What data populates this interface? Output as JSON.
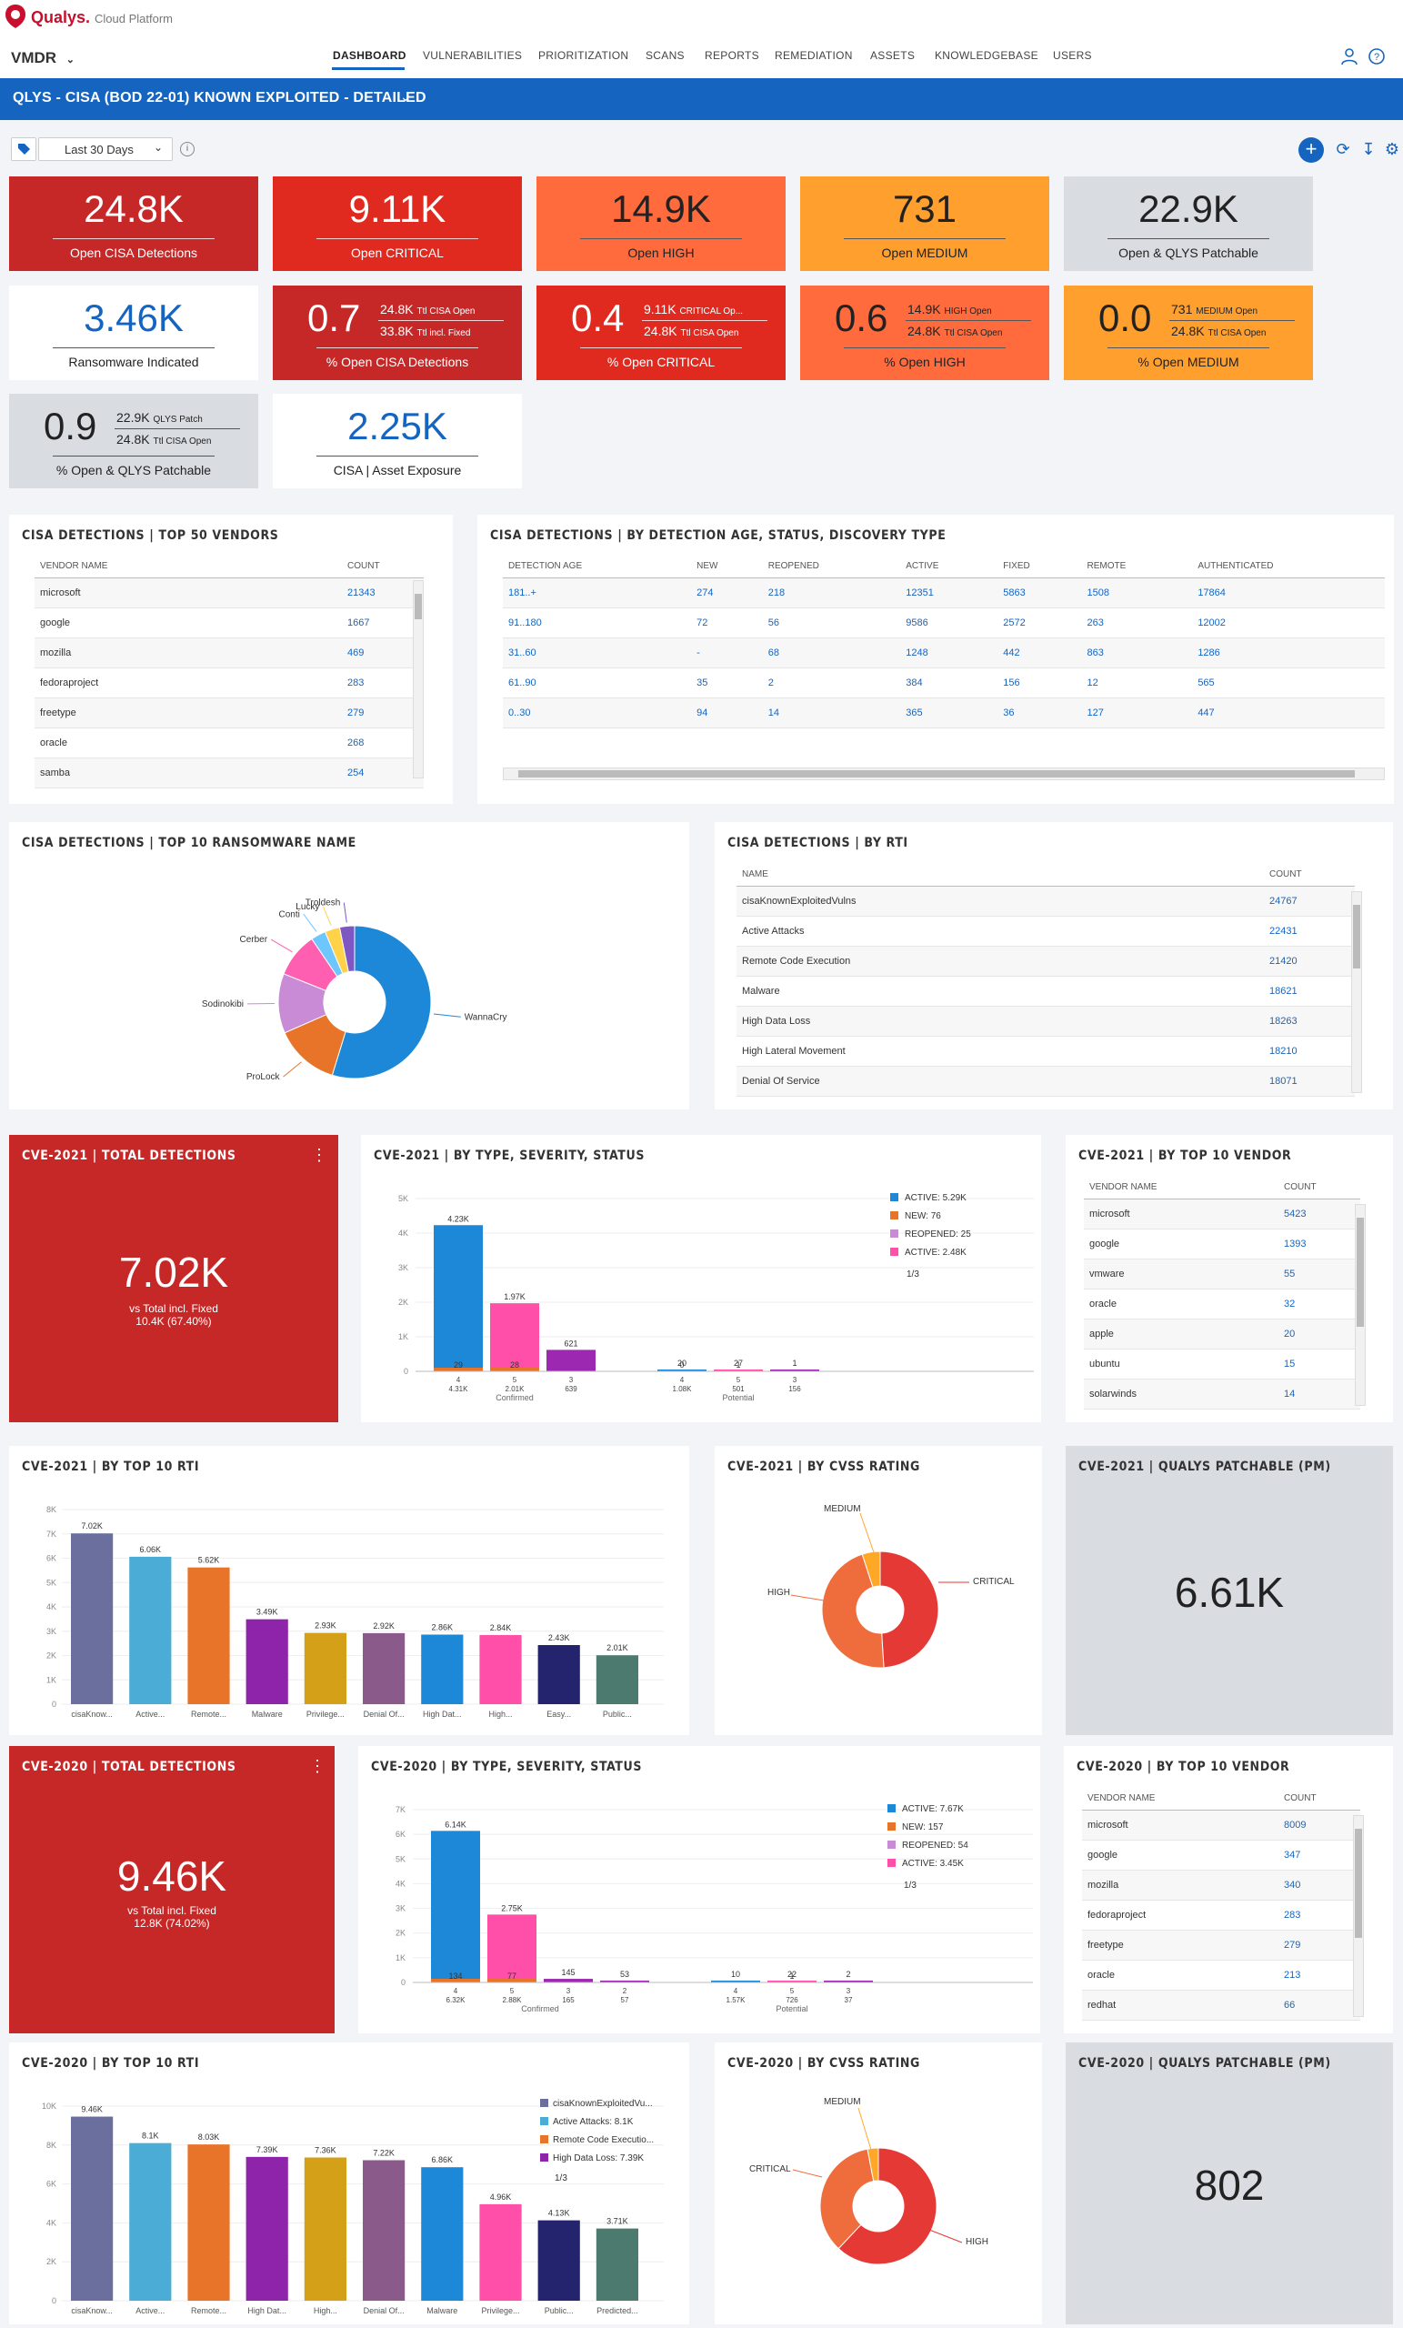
{
  "app": {
    "brand": "Qualys.",
    "platform": "Cloud Platform",
    "module": "VMDR"
  },
  "nav": [
    "DASHBOARD",
    "VULNERABILITIES",
    "PRIORITIZATION",
    "SCANS",
    "REPORTS",
    "REMEDIATION",
    "ASSETS",
    "KNOWLEDGEBASE",
    "USERS"
  ],
  "dashboard_title": "QLYS - CISA (BOD 22-01) KNOWN EXPLOITED - DETAILED",
  "filter": {
    "date_range": "Last 30 Days"
  },
  "colors": {
    "dark_red": "#c62828",
    "red": "#e53935",
    "orange_red": "#ff7043",
    "orange": "#ffa726",
    "grey": "#d9dde2",
    "blue": "#1565c0"
  },
  "cards": {
    "c1": {
      "value": "24.8K",
      "label": "Open CISA Detections"
    },
    "c2": {
      "value": "9.11K",
      "label": "Open CRITICAL"
    },
    "c3": {
      "value": "14.9K",
      "label": "Open HIGH"
    },
    "c4": {
      "value": "731",
      "label": "Open MEDIUM"
    },
    "c5": {
      "value": "22.9K",
      "label": "Open & QLYS Patchable"
    },
    "c6": {
      "value": "3.46K",
      "label": "Ransomware Indicated"
    },
    "c7": {
      "value": "0.7",
      "n1": "24.8K",
      "n1l": "Ttl CISA Open",
      "n2": "33.8K",
      "n2l": "Ttl incl. Fixed",
      "label": "% Open CISA Detections"
    },
    "c8": {
      "value": "0.4",
      "n1": "9.11K",
      "n1l": "CRITICAL Op...",
      "n2": "24.8K",
      "n2l": "Ttl CISA Open",
      "label": "% Open CRITICAL"
    },
    "c9": {
      "value": "0.6",
      "n1": "14.9K",
      "n1l": "HIGH Open",
      "n2": "24.8K",
      "n2l": "Ttl CISA Open",
      "label": "% Open HIGH"
    },
    "c10": {
      "value": "0.0",
      "n1": "731",
      "n1l": "MEDIUM Open",
      "n2": "24.8K",
      "n2l": "Ttl CISA Open",
      "label": "% Open MEDIUM"
    },
    "c11": {
      "value": "0.9",
      "n1": "22.9K",
      "n1l": "QLYS Patch",
      "n2": "24.8K",
      "n2l": "Ttl CISA Open",
      "label": "% Open & QLYS Patchable"
    },
    "c12": {
      "value": "2.25K",
      "label": "CISA | Asset Exposure"
    }
  },
  "vendors50": {
    "title": "CISA DETECTIONS | TOP 50 VENDORS",
    "col1": "VENDOR NAME",
    "col2": "COUNT",
    "rows": [
      [
        "microsoft",
        "21343"
      ],
      [
        "google",
        "1667"
      ],
      [
        "mozilla",
        "469"
      ],
      [
        "fedoraproject",
        "283"
      ],
      [
        "freetype",
        "279"
      ],
      [
        "oracle",
        "268"
      ],
      [
        "samba",
        "254"
      ]
    ]
  },
  "age": {
    "title": "CISA DETECTIONS | BY DETECTION AGE, STATUS, DISCOVERY TYPE",
    "cols": [
      "DETECTION AGE",
      "NEW",
      "REOPENED",
      "ACTIVE",
      "FIXED",
      "REMOTE",
      "AUTHENTICATED"
    ],
    "rows": [
      [
        "181..+",
        "274",
        "218",
        "12351",
        "5863",
        "1508",
        "17864"
      ],
      [
        "91..180",
        "72",
        "56",
        "9586",
        "2572",
        "263",
        "12002"
      ],
      [
        "31..60",
        "-",
        "68",
        "1248",
        "442",
        "863",
        "1286"
      ],
      [
        "61..90",
        "35",
        "2",
        "384",
        "156",
        "12",
        "565"
      ],
      [
        "0..30",
        "94",
        "14",
        "365",
        "36",
        "127",
        "447"
      ]
    ]
  },
  "ransom": {
    "title": "CISA DETECTIONS | TOP 10 RANSOMWARE NAME",
    "labels": [
      "WannaCry",
      "ProLock",
      "Sodinokibi",
      "Cerber",
      "Conti",
      "Lucky",
      "Troldesh"
    ]
  },
  "rti": {
    "title": "CISA DETECTIONS | BY RTI",
    "col1": "NAME",
    "col2": "COUNT",
    "rows": [
      [
        "cisaKnownExploitedVulns",
        "24767"
      ],
      [
        "Active Attacks",
        "22431"
      ],
      [
        "Remote Code Execution",
        "21420"
      ],
      [
        "Malware",
        "18621"
      ],
      [
        "High Data Loss",
        "18263"
      ],
      [
        "High Lateral Movement",
        "18210"
      ],
      [
        "Denial Of Service",
        "18071"
      ]
    ]
  },
  "cve21_total": {
    "title": "CVE-2021 | TOTAL DETECTIONS",
    "value": "7.02K",
    "sub1": "vs Total incl. Fixed",
    "sub2": "10.4K (67.40%)"
  },
  "cve21_type": {
    "title": "CVE-2021 | BY TYPE, SEVERITY, STATUS",
    "legend": [
      "ACTIVE: 5.29K",
      "NEW: 76",
      "REOPENED: 25",
      "ACTIVE: 2.48K"
    ],
    "pager": "1/3",
    "yticks": [
      "5K",
      "4K",
      "3K",
      "2K",
      "1K",
      "0"
    ],
    "bars": [
      [
        "4.23K",
        "29"
      ],
      [
        "1.97K",
        "28"
      ],
      [
        "621",
        ""
      ],
      [
        "20",
        "0"
      ],
      [
        "27",
        "1"
      ],
      [
        "1",
        ""
      ]
    ],
    "xl1": [
      "4",
      "5",
      "3",
      "4",
      "5",
      "3"
    ],
    "xl2": [
      "4.31K",
      "2.01K",
      "639",
      "1.08K",
      "501",
      "156"
    ],
    "groups": [
      "Confirmed",
      "Potential"
    ]
  },
  "cve21_vendor": {
    "title": "CVE-2021 | BY TOP 10 VENDOR",
    "col1": "VENDOR NAME",
    "col2": "COUNT",
    "rows": [
      [
        "microsoft",
        "5423"
      ],
      [
        "google",
        "1393"
      ],
      [
        "vmware",
        "55"
      ],
      [
        "oracle",
        "32"
      ],
      [
        "apple",
        "20"
      ],
      [
        "ubuntu",
        "15"
      ],
      [
        "solarwinds",
        "14"
      ]
    ]
  },
  "cve21_rti": {
    "title": "CVE-2021 | BY TOP 10 RTI",
    "yticks": [
      "8K",
      "7K",
      "6K",
      "5K",
      "4K",
      "3K",
      "2K",
      "1K",
      "0"
    ],
    "labels": [
      "cisaKnow...",
      "Active...",
      "Remote...",
      "Malware",
      "Privilege...",
      "Denial Of...",
      "High Dat...",
      "High...",
      "Easy...",
      "Public..."
    ],
    "vals": [
      "7.02K",
      "6.06K",
      "5.62K",
      "3.49K",
      "2.93K",
      "2.92K",
      "2.86K",
      "2.84K",
      "2.43K",
      "2.01K"
    ]
  },
  "cve21_cvss": {
    "title": "CVE-2021 | BY CVSS RATING",
    "labels": [
      "MEDIUM",
      "HIGH",
      "CRITICAL"
    ]
  },
  "cve21_pm": {
    "title": "CVE-2021 | QUALYS PATCHABLE (PM)",
    "value": "6.61K"
  },
  "cve20_total": {
    "title": "CVE-2020 | TOTAL DETECTIONS",
    "value": "9.46K",
    "sub1": "vs Total incl. Fixed",
    "sub2": "12.8K (74.02%)"
  },
  "cve20_type": {
    "title": "CVE-2020 | BY TYPE, SEVERITY, STATUS",
    "legend": [
      "ACTIVE: 7.67K",
      "NEW: 157",
      "REOPENED: 54",
      "ACTIVE: 3.45K"
    ],
    "pager": "1/3",
    "yticks": [
      "7K",
      "6K",
      "5K",
      "4K",
      "3K",
      "2K",
      "1K",
      "0"
    ],
    "bars": [
      [
        "6.14K",
        "134"
      ],
      [
        "2.75K",
        "77"
      ],
      [
        "145",
        ""
      ],
      [
        "53",
        ""
      ],
      [
        "10",
        ""
      ],
      [
        "22",
        "1"
      ],
      [
        "2",
        ""
      ]
    ],
    "xl1": [
      "4",
      "5",
      "3",
      "2",
      "4",
      "5",
      "3"
    ],
    "xl2": [
      "6.32K",
      "2.88K",
      "165",
      "57",
      "1.57K",
      "726",
      "37"
    ],
    "groups": [
      "Confirmed",
      "Potential"
    ]
  },
  "cve20_vendor": {
    "title": "CVE-2020 | BY TOP 10 VENDOR",
    "col1": "VENDOR NAME",
    "col2": "COUNT",
    "rows": [
      [
        "microsoft",
        "8009"
      ],
      [
        "google",
        "347"
      ],
      [
        "mozilla",
        "340"
      ],
      [
        "fedoraproject",
        "283"
      ],
      [
        "freetype",
        "279"
      ],
      [
        "oracle",
        "213"
      ],
      [
        "redhat",
        "66"
      ]
    ]
  },
  "cve20_rti": {
    "title": "CVE-2020 | BY TOP 10 RTI",
    "yticks": [
      "10K",
      "8K",
      "6K",
      "4K",
      "2K",
      "0"
    ],
    "labels": [
      "cisaKnow...",
      "Active...",
      "Remote...",
      "High Dat...",
      "High...",
      "Denial Of...",
      "Malware",
      "Privilege...",
      "Public...",
      "Predicted..."
    ],
    "vals": [
      "9.46K",
      "8.1K",
      "8.03K",
      "7.39K",
      "7.36K",
      "7.22K",
      "6.86K",
      "4.96K",
      "4.13K",
      "3.71K"
    ],
    "legend": [
      "cisaKnownExploitedVu...",
      "Active Attacks: 8.1K",
      "Remote Code Executio...",
      "High Data Loss: 7.39K"
    ],
    "pager": "1/3"
  },
  "cve20_cvss": {
    "title": "CVE-2020 | BY CVSS RATING",
    "labels": [
      "MEDIUM",
      "CRITICAL",
      "HIGH"
    ]
  },
  "cve20_pm": {
    "title": "CVE-2020 | QUALYS PATCHABLE (PM)",
    "value": "802"
  },
  "chart_data": [
    {
      "type": "pie",
      "title": "CISA DETECTIONS | TOP 10 RANSOMWARE NAME",
      "labels": [
        "WannaCry",
        "ProLock",
        "Sodinokibi",
        "Cerber",
        "Conti",
        "Lucky",
        "Troldesh"
      ],
      "values": [
        52,
        13,
        12,
        9,
        3,
        3,
        3
      ],
      "colors": [
        "#1e88d8",
        "#e8742a",
        "#c98ad6",
        "#ff5fb0",
        "#6ec6ff",
        "#ffd24a",
        "#7e57c2"
      ]
    },
    {
      "type": "bar",
      "title": "CVE-2021 | BY TYPE, SEVERITY, STATUS",
      "categories": [
        "4",
        "5",
        "3",
        "4",
        "5",
        "3"
      ],
      "series": [
        {
          "name": "ACTIVE: 5.29K",
          "values": [
            4230,
            0,
            0,
            20,
            0,
            0
          ]
        },
        {
          "name": "ACTIVE: 2.48K",
          "values": [
            0,
            1970,
            0,
            0,
            27,
            0
          ]
        },
        {
          "name": "NEW: 76",
          "values": [
            29,
            28,
            0,
            0,
            0,
            0
          ]
        }
      ],
      "ylim": [
        0,
        5000
      ]
    },
    {
      "type": "bar",
      "title": "CVE-2021 | BY TOP 10 RTI",
      "categories": [
        "cisaKnow...",
        "Active...",
        "Remote...",
        "Malware",
        "Privilege...",
        "Denial Of...",
        "High Dat...",
        "High...",
        "Easy...",
        "Public..."
      ],
      "values": [
        7020,
        6060,
        5620,
        3490,
        2930,
        2920,
        2860,
        2840,
        2430,
        2010
      ],
      "ylim": [
        0,
        8000
      ]
    },
    {
      "type": "pie",
      "title": "CVE-2021 | BY CVSS RATING",
      "labels": [
        "CRITICAL",
        "HIGH",
        "MEDIUM"
      ],
      "values": [
        49,
        46,
        5
      ]
    },
    {
      "type": "bar",
      "title": "CVE-2020 | BY TYPE, SEVERITY, STATUS",
      "categories": [
        "4",
        "5",
        "3",
        "2",
        "4",
        "5",
        "3"
      ],
      "series": [
        {
          "name": "ACTIVE: 7.67K",
          "values": [
            6140,
            0,
            0,
            0,
            10,
            0,
            0
          ]
        },
        {
          "name": "ACTIVE: 3.45K",
          "values": [
            0,
            2750,
            0,
            0,
            0,
            22,
            0
          ]
        },
        {
          "name": "NEW: 157",
          "values": [
            134,
            77,
            0,
            0,
            0,
            0,
            0
          ]
        }
      ],
      "ylim": [
        0,
        7000
      ]
    },
    {
      "type": "bar",
      "title": "CVE-2020 | BY TOP 10 RTI",
      "categories": [
        "cisaKnow...",
        "Active...",
        "Remote...",
        "High Dat...",
        "High...",
        "Denial Of...",
        "Malware",
        "Privilege...",
        "Public...",
        "Predicted..."
      ],
      "values": [
        9460,
        8100,
        8030,
        7390,
        7360,
        7220,
        6860,
        4960,
        4130,
        3710
      ],
      "ylim": [
        0,
        10000
      ]
    },
    {
      "type": "pie",
      "title": "CVE-2020 | BY CVSS RATING",
      "labels": [
        "HIGH",
        "CRITICAL",
        "MEDIUM"
      ],
      "values": [
        62,
        35,
        3
      ]
    }
  ]
}
